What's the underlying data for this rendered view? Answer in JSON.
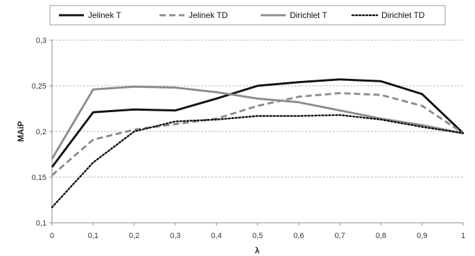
{
  "chart_data": {
    "type": "line",
    "title": "",
    "xlabel": "λ",
    "ylabel": "MAiP",
    "x": [
      0,
      0.1,
      0.2,
      0.3,
      0.4,
      0.5,
      0.6,
      0.7,
      0.8,
      0.9,
      1
    ],
    "x_tick_labels": [
      "0",
      "0,1",
      "0,2",
      "0,3",
      "0,4",
      "0,5",
      "0,6",
      "0,7",
      "0,8",
      "0,9",
      "1"
    ],
    "xlim": [
      0,
      1
    ],
    "ylim": [
      0.1,
      0.3
    ],
    "y_ticks": [
      0.1,
      0.15,
      0.2,
      0.25,
      0.3
    ],
    "y_tick_labels": [
      "0,1",
      "0,15",
      "0,2",
      "0,25",
      "0,3"
    ],
    "grid": "horizontal",
    "legend_position": "top",
    "series": [
      {
        "name": "Jelinek T",
        "color": "#111111",
        "dash": "solid",
        "width": 3,
        "values": [
          0.161,
          0.221,
          0.224,
          0.223,
          0.236,
          0.25,
          0.254,
          0.257,
          0.255,
          0.241,
          0.198
        ]
      },
      {
        "name": "Jelinek TD",
        "color": "#8c8c8c",
        "dash": "dashed",
        "width": 3,
        "values": [
          0.152,
          0.191,
          0.202,
          0.208,
          0.214,
          0.228,
          0.238,
          0.242,
          0.24,
          0.228,
          0.198
        ]
      },
      {
        "name": "Dirichlet T",
        "color": "#8c8c8c",
        "dash": "solid",
        "width": 3,
        "values": [
          0.17,
          0.246,
          0.249,
          0.248,
          0.243,
          0.236,
          0.232,
          0.223,
          0.214,
          0.207,
          0.198
        ]
      },
      {
        "name": "Dirichlet TD",
        "color": "#111111",
        "dash": "dotted",
        "width": 2.5,
        "values": [
          0.117,
          0.166,
          0.2,
          0.211,
          0.213,
          0.217,
          0.217,
          0.218,
          0.213,
          0.205,
          0.198
        ]
      }
    ]
  }
}
